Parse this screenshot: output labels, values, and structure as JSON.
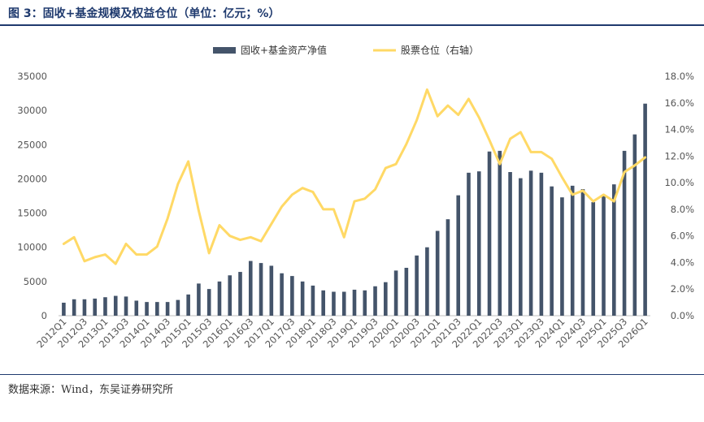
{
  "title": "图 3：固收+基金规模及权益仓位（单位：亿元；%）",
  "source": "数据来源：Wind，东吴证券研究所",
  "colors": {
    "bar": "#44546a",
    "line": "#ffd966",
    "title": "#1f3a6e"
  },
  "chart_data": {
    "type": "bar+line",
    "categories": [
      "2012Q1",
      "2012Q2",
      "2012Q3",
      "2012Q4",
      "2013Q1",
      "2013Q2",
      "2013Q3",
      "2013Q4",
      "2014Q1",
      "2014Q2",
      "2014Q3",
      "2014Q4",
      "2015Q1",
      "2015Q2",
      "2015Q3",
      "2015Q4",
      "2016Q1",
      "2016Q2",
      "2016Q3",
      "2016Q4",
      "2017Q1",
      "2017Q2",
      "2017Q3",
      "2017Q4",
      "2018Q1",
      "2018Q2",
      "2018Q3",
      "2018Q4",
      "2019Q1",
      "2019Q2",
      "2019Q3",
      "2019Q4",
      "2020Q1",
      "2020Q2",
      "2020Q3",
      "2020Q4",
      "2021Q1",
      "2021Q2",
      "2021Q3",
      "2021Q4",
      "2022Q1",
      "2022Q2",
      "2022Q3",
      "2022Q4",
      "2023Q1",
      "2023Q2",
      "2023Q3",
      "2023Q4",
      "2024Q1",
      "2024Q2",
      "2024Q3",
      "2024Q4",
      "2025Q1",
      "2025Q2",
      "2025Q3",
      "2025Q4",
      "2026Q1"
    ],
    "x_tick_labels": [
      "2012Q1",
      "2012Q3",
      "2013Q1",
      "2013Q3",
      "2014Q1",
      "2014Q3",
      "2015Q1",
      "2015Q3",
      "2016Q1",
      "2016Q3",
      "2017Q1",
      "2017Q3",
      "2018Q1",
      "2018Q3",
      "2019Q1",
      "2019Q3",
      "2020Q1",
      "2020Q3",
      "2021Q1",
      "2021Q3",
      "2022Q1",
      "2022Q3",
      "2023Q1",
      "2023Q3",
      "2024Q1",
      "2024Q3",
      "2025Q1",
      "2025Q3",
      "2026Q1"
    ],
    "series": [
      {
        "name": "固收+基金资产净值",
        "type": "bar",
        "axis": "left",
        "values": [
          1900,
          2400,
          2400,
          2500,
          2700,
          2900,
          2800,
          2200,
          2000,
          2000,
          2000,
          2300,
          3100,
          4700,
          3900,
          5000,
          5900,
          6400,
          8000,
          7700,
          7300,
          6200,
          5800,
          5000,
          4400,
          3700,
          3500,
          3500,
          3800,
          3700,
          4300,
          4900,
          6600,
          7000,
          8800,
          10000,
          12400,
          14100,
          17600,
          20900,
          21100,
          24000,
          24100,
          21000,
          20100,
          21200,
          20900,
          18900,
          17300,
          19000,
          18500,
          16600,
          17700,
          19200,
          24100,
          26500,
          31000
        ]
      },
      {
        "name": "股票仓位（右轴）",
        "type": "line",
        "axis": "right",
        "values": [
          5.4,
          5.9,
          4.1,
          4.4,
          4.6,
          3.9,
          5.4,
          4.6,
          4.6,
          5.2,
          7.3,
          9.9,
          11.6,
          7.9,
          4.7,
          6.8,
          6.0,
          5.7,
          5.9,
          5.6,
          6.9,
          8.2,
          9.1,
          9.6,
          9.3,
          8.0,
          8.0,
          5.9,
          8.6,
          8.8,
          9.5,
          11.1,
          11.4,
          12.9,
          14.7,
          17.0,
          15.0,
          15.8,
          15.1,
          16.3,
          14.9,
          13.2,
          11.4,
          13.3,
          13.8,
          12.3,
          12.3,
          11.8,
          10.4,
          9.1,
          9.4,
          8.6,
          9.1,
          8.6,
          10.8,
          11.3,
          11.9
        ]
      }
    ],
    "left_axis": {
      "ylim": [
        0,
        35000
      ],
      "ticks": [
        "0",
        "5000",
        "10000",
        "15000",
        "20000",
        "25000",
        "30000",
        "35000"
      ]
    },
    "right_axis": {
      "ylim": [
        0,
        18
      ],
      "ticks": [
        "0.0%",
        "2.0%",
        "4.0%",
        "6.0%",
        "8.0%",
        "10.0%",
        "12.0%",
        "14.0%",
        "16.0%",
        "18.0%"
      ]
    },
    "legend": {
      "placement": "top-center",
      "entries": [
        "固收+基金资产净值",
        "股票仓位（右轴）"
      ]
    },
    "grid": false
  }
}
